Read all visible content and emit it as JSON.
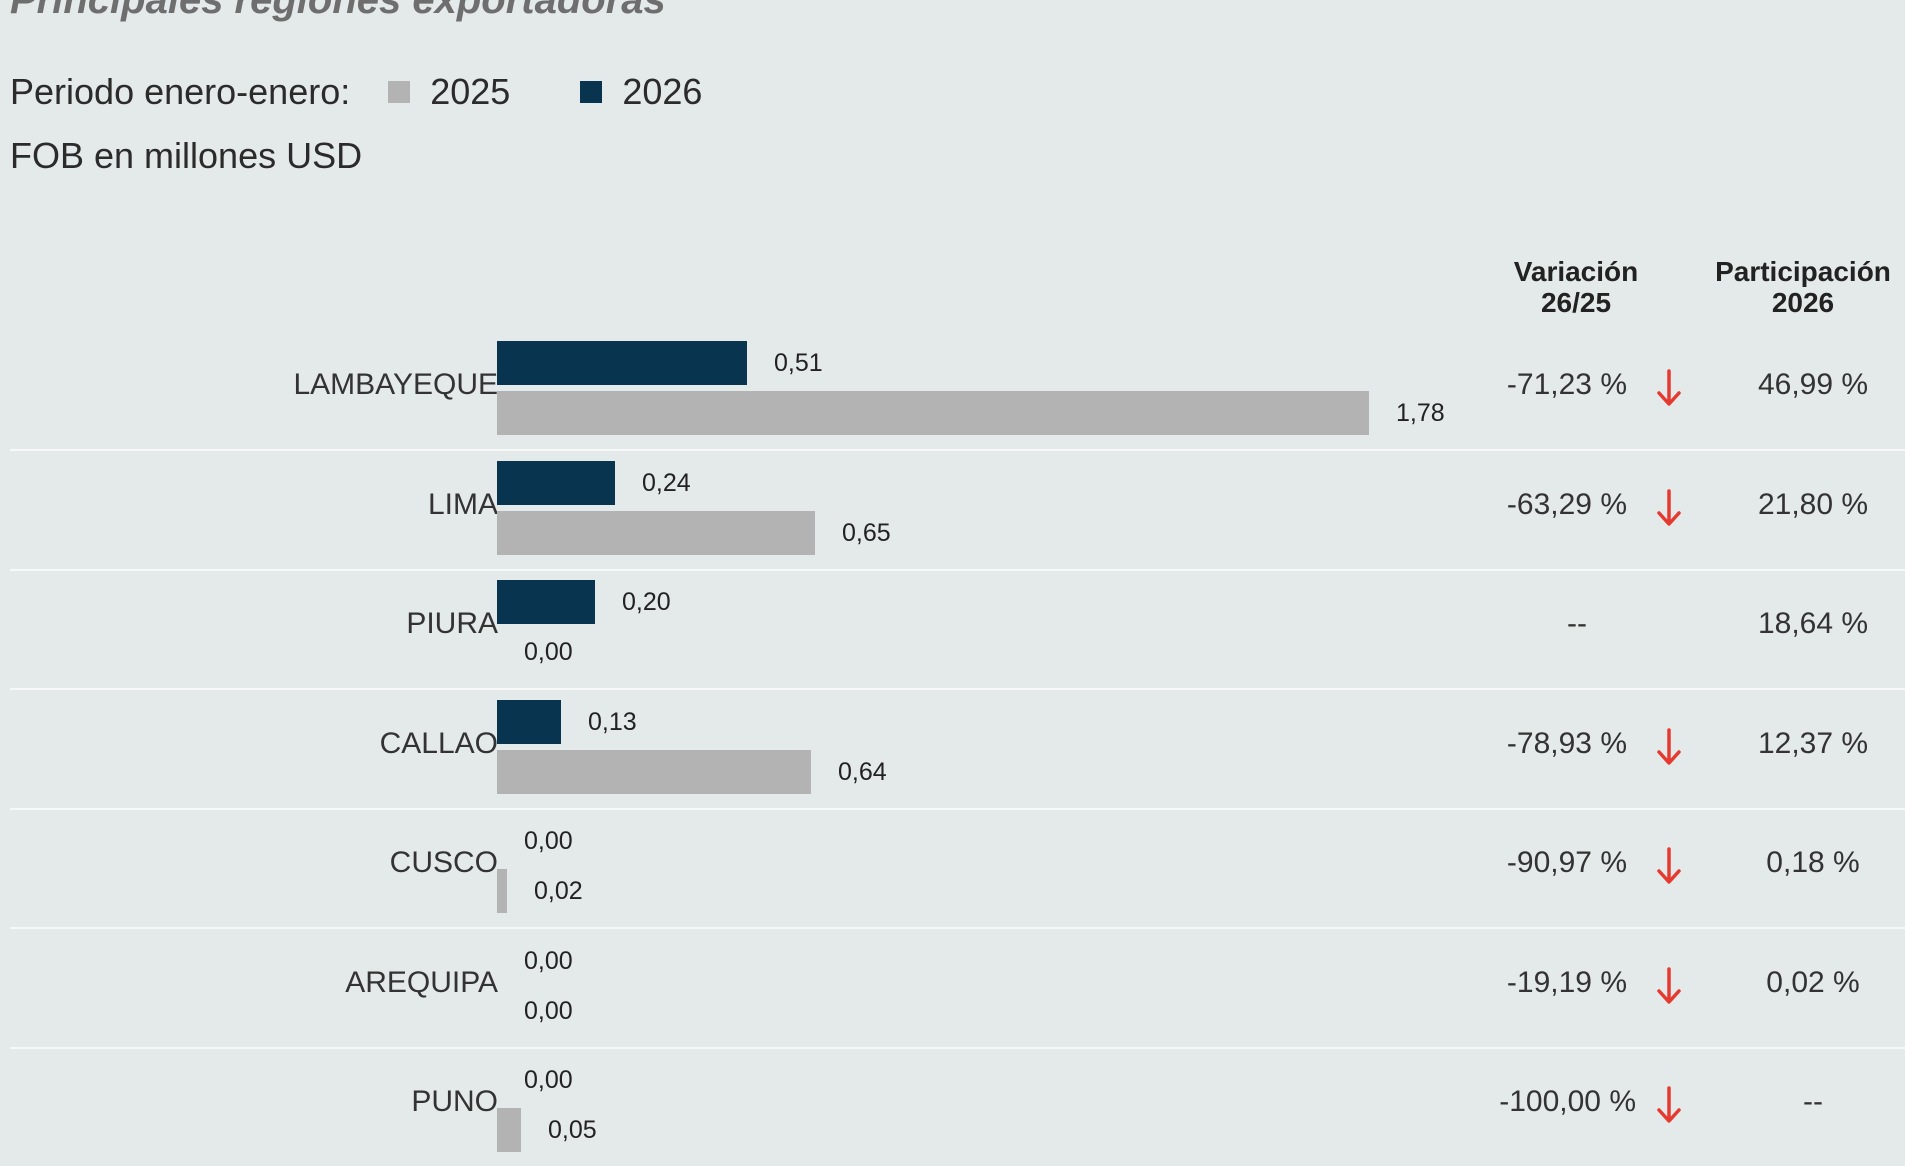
{
  "header": {
    "title": "Principales regiones exportadoras",
    "period_label": "Periodo enero-enero:",
    "unit_label": "FOB en millones USD",
    "col_variation_line1": "Variación",
    "col_variation_line2": "26/25",
    "col_share_line1": "Participación",
    "col_share_line2": "2026"
  },
  "colors": {
    "series_2025": "#b3b3b3",
    "series_2026": "#08344f",
    "arrow_down": "#e53a2f",
    "background": "#e4e9ea"
  },
  "chart_data": {
    "type": "bar",
    "orientation": "horizontal",
    "title": "Principales regiones exportadoras",
    "subtitle": "FOB en millones USD",
    "categories": [
      "LAMBAYEQUE",
      "LIMA",
      "PIURA",
      "CALLAO",
      "CUSCO",
      "AREQUIPA",
      "PUNO"
    ],
    "series": [
      {
        "name": "2026",
        "color": "#08344f",
        "values": [
          0.51,
          0.24,
          0.2,
          0.13,
          0.0,
          0.0,
          0.0
        ],
        "labels": [
          "0,51",
          "0,24",
          "0,20",
          "0,13",
          "0,00",
          "0,00",
          "0,00"
        ]
      },
      {
        "name": "2025",
        "color": "#b3b3b3",
        "values": [
          1.78,
          0.65,
          0.0,
          0.64,
          0.02,
          0.0,
          0.05
        ],
        "labels": [
          "1,78",
          "0,65",
          "0,00",
          "0,64",
          "0,02",
          "0,00",
          "0,05"
        ]
      }
    ],
    "legend": [
      "2025",
      "2026"
    ],
    "legend_placement": "top-left",
    "xlim": [
      0,
      1.78
    ],
    "grid": false
  },
  "table": {
    "variation": [
      "-71,23 %",
      "-63,29 %",
      "--",
      "-78,93 %",
      "-90,97 %",
      "-19,19 %",
      "-100,00 %"
    ],
    "variation_arrow": [
      "arrow-down-icon",
      "arrow-down-icon",
      "",
      "arrow-down-icon",
      "arrow-down-icon",
      "arrow-down-icon",
      "arrow-down-icon"
    ],
    "share_2026": [
      "46,99 %",
      "21,80 %",
      "18,64 %",
      "12,37 %",
      "0,18 %",
      "0,02 %",
      "--"
    ]
  }
}
